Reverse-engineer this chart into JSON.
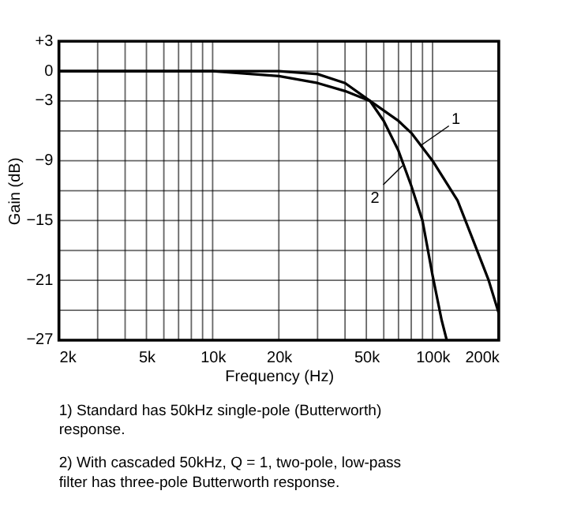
{
  "chart_data": {
    "type": "line",
    "xlabel": "Frequency (Hz)",
    "ylabel": "Gain (dB)",
    "log": "x",
    "grid": true,
    "line_style": "solid",
    "xlim": [
      2000,
      200000
    ],
    "ylim": [
      -27,
      3
    ],
    "xticks": [
      {
        "value": 2000,
        "label": "2k"
      },
      {
        "value": 3000,
        "label": null
      },
      {
        "value": 4000,
        "label": null
      },
      {
        "value": 5000,
        "label": "5k"
      },
      {
        "value": 6000,
        "label": null
      },
      {
        "value": 7000,
        "label": null
      },
      {
        "value": 8000,
        "label": null
      },
      {
        "value": 9000,
        "label": null
      },
      {
        "value": 10000,
        "label": "10k"
      },
      {
        "value": 20000,
        "label": "20k"
      },
      {
        "value": 30000,
        "label": null
      },
      {
        "value": 40000,
        "label": null
      },
      {
        "value": 50000,
        "label": "50k"
      },
      {
        "value": 60000,
        "label": null
      },
      {
        "value": 70000,
        "label": null
      },
      {
        "value": 80000,
        "label": null
      },
      {
        "value": 90000,
        "label": null
      },
      {
        "value": 100000,
        "label": "100k"
      },
      {
        "value": 200000,
        "label": "200k"
      }
    ],
    "yticks": [
      {
        "value": 3,
        "label": "+3"
      },
      0,
      {
        "value": -3,
        "label": "−3"
      },
      {
        "value": -6,
        "label": null
      },
      {
        "value": -9,
        "label": "−9"
      },
      {
        "value": -12,
        "label": null
      },
      {
        "value": -15,
        "label": "−15"
      },
      {
        "value": -18,
        "label": null
      },
      {
        "value": -21,
        "label": "−21"
      },
      {
        "value": -24,
        "label": null
      },
      {
        "value": -27,
        "label": "−27"
      }
    ],
    "series": [
      {
        "color": "#000000",
        "x": [
          2000,
          10000,
          20000,
          30000,
          40000,
          52000,
          70000,
          80000,
          100000,
          130000,
          150000,
          180000,
          200000
        ],
        "values": [
          0,
          0,
          -0.5,
          -1.2,
          -2,
          -3,
          -5,
          -6.2,
          -9,
          -13,
          -16.5,
          -21,
          -24.3
        ]
      },
      {
        "color": "#000000",
        "x": [
          2000,
          10000,
          20000,
          30000,
          40000,
          52000,
          60000,
          70000,
          80000,
          90000,
          100000,
          110000,
          116000
        ],
        "values": [
          0,
          0,
          0,
          -0.3,
          -1.2,
          -3,
          -5,
          -8,
          -11.5,
          -15,
          -20.5,
          -25,
          -27
        ]
      }
    ],
    "annotations": [
      {
        "text": "1",
        "x": 88000,
        "y": -7.5
      },
      {
        "text": "2",
        "x": 73000,
        "y": -9.5
      },
      "1) Standard has 50kHz single-pole (Butterworth) response.",
      "2) With cascaded 50kHz, Q = 1, two-pole, low-pass filter has three-pole Butterworth response."
    ]
  }
}
